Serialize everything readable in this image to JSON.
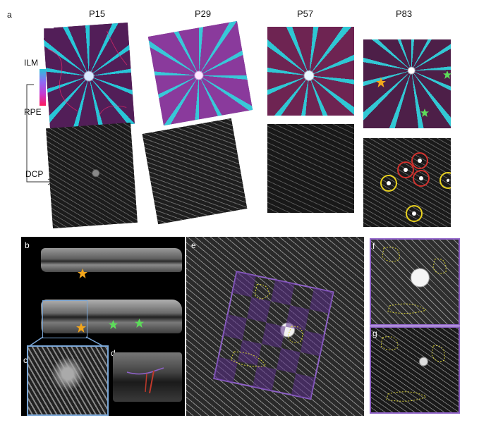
{
  "panel_labels": {
    "a": "a",
    "b": "b",
    "c": "c",
    "d": "d",
    "e": "e",
    "f": "f",
    "g": "g"
  },
  "timepoints": [
    "P15",
    "P29",
    "P57",
    "P83"
  ],
  "depth_legend": {
    "top": "ILM",
    "bottom": "RPE"
  },
  "lower_row_label": "DCP",
  "colors": {
    "ilm": "#28c6d8",
    "mid": "#9c6cff",
    "rpe": "#ff1a5e",
    "panel_border_blue": "#7aa6d6",
    "panel_border_purple": "#8f62c8",
    "star_orange": "#f3a61c",
    "star_green": "#5ddc5a",
    "circle_red": "#d0312d",
    "circle_yellow": "#e8d11f",
    "annotation_yellow": "#d9d235"
  },
  "icons": [
    "scale-bar",
    "arrow-right",
    "star",
    "circle-marker"
  ]
}
